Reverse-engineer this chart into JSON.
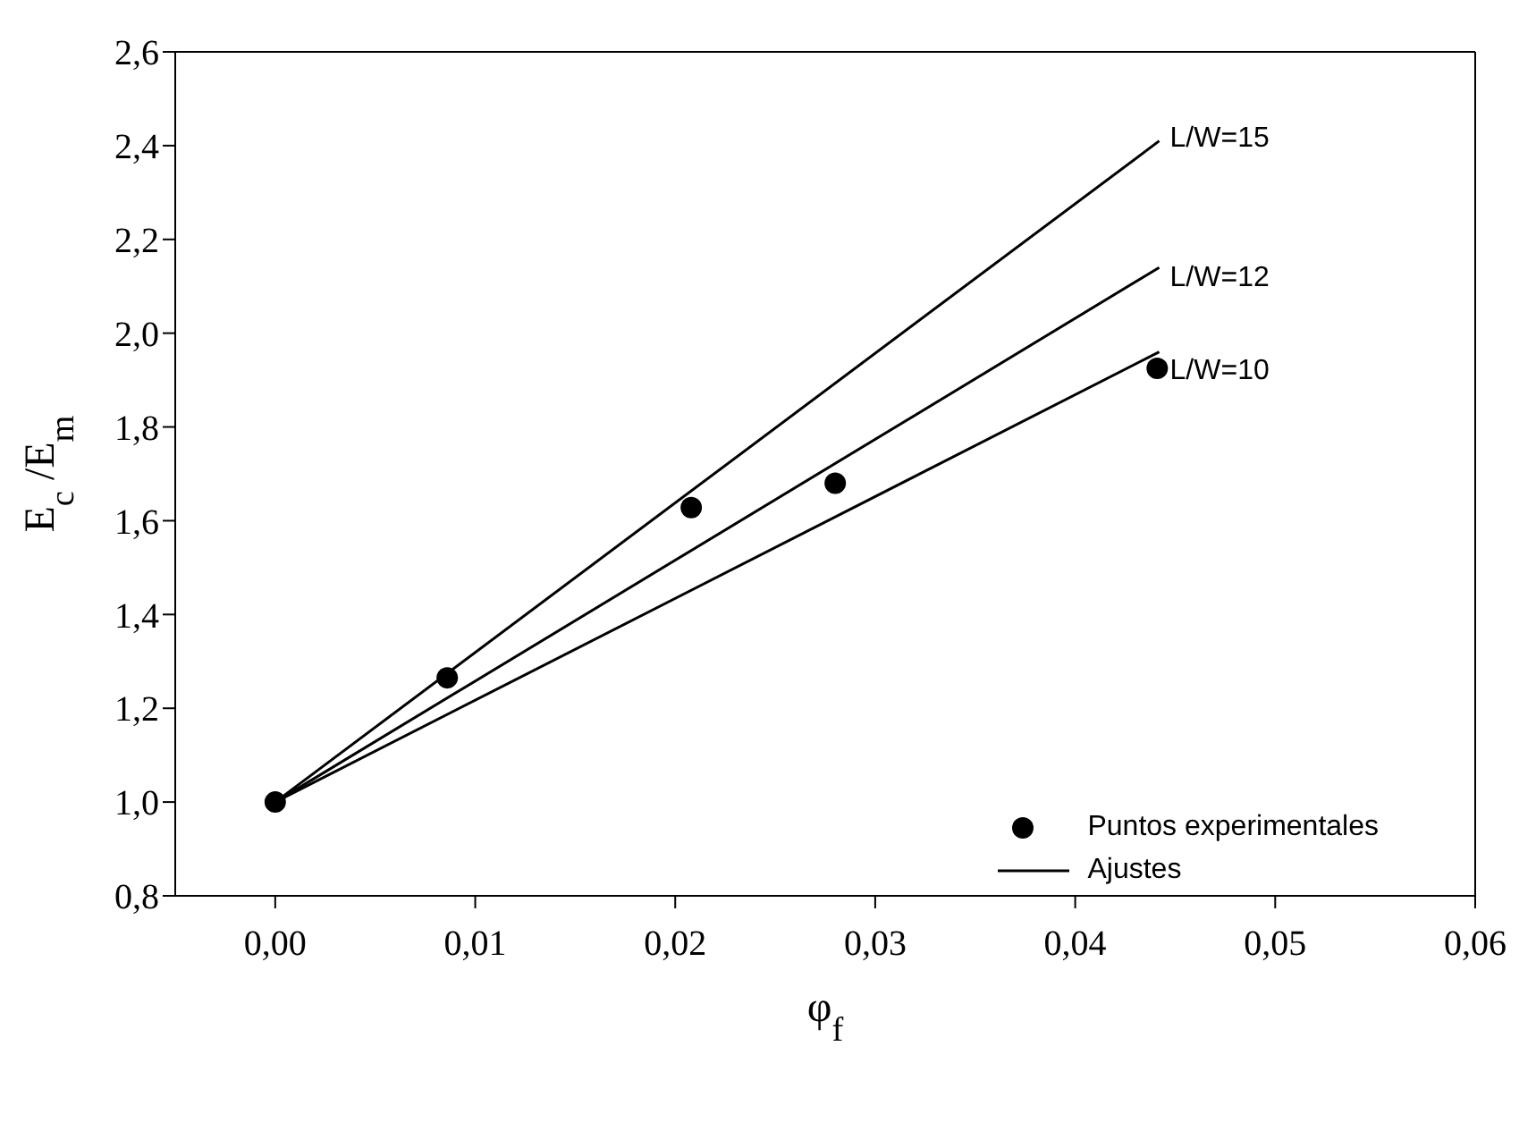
{
  "chart_data": {
    "type": "scatter",
    "xlabel": "φ$_{f}$",
    "ylabel": "E$_{c}$ /E$_{m}$",
    "series": [
      {
        "name": "Puntos experimentales",
        "color": "#000000",
        "marker": "circle",
        "x": [
          0,
          0.0086,
          0.0208,
          0.028,
          0.0441
        ],
        "values": [
          1.0,
          1.265,
          1.628,
          1.68,
          1.925
        ]
      },
      {
        "name": "Ajustes",
        "type": "line",
        "color": "#000000",
        "marker": "none",
        "x": [
          0,
          0.0442
        ],
        "values": [
          1.0,
          2.41
        ]
      },
      {
        "type": "line",
        "color": "#000000",
        "marker": "none",
        "x": [
          0,
          0.0442
        ],
        "values": [
          1.0,
          2.14
        ]
      },
      {
        "type": "line",
        "color": "#000000",
        "marker": "none",
        "x": [
          0,
          0.0442
        ],
        "values": [
          1.0,
          1.96
        ]
      }
    ],
    "xlim": [
      -0.005,
      0.06
    ],
    "xticks": [
      {
        "value": 0,
        "label": "0,00"
      },
      {
        "value": 0.01,
        "label": "0,01"
      },
      {
        "value": 0.02,
        "label": "0,02"
      },
      {
        "value": 0.03,
        "label": "0,03"
      },
      {
        "value": 0.04,
        "label": "0,04"
      },
      {
        "value": 0.05,
        "label": "0,05"
      },
      {
        "value": 0.06,
        "label": "0,06"
      }
    ],
    "ylim": [
      0.8,
      2.6
    ],
    "yticks": [
      {
        "value": 0.8,
        "label": "0,8"
      },
      {
        "value": 1.0,
        "label": "1,0"
      },
      {
        "value": 1.2,
        "label": "1,2"
      },
      {
        "value": 1.4,
        "label": "1,4"
      },
      {
        "value": 1.6,
        "label": "1,6"
      },
      {
        "value": 1.8,
        "label": "1,8"
      },
      {
        "value": 2.0,
        "label": "2,0"
      },
      {
        "value": 2.2,
        "label": "2,2"
      },
      {
        "value": 2.4,
        "label": "2,4"
      },
      {
        "value": 2.6,
        "label": "2,6"
      }
    ],
    "annotations": [
      "L/W=15",
      "L/W=12",
      "L/W=10"
    ],
    "legend": "bottom right"
  }
}
